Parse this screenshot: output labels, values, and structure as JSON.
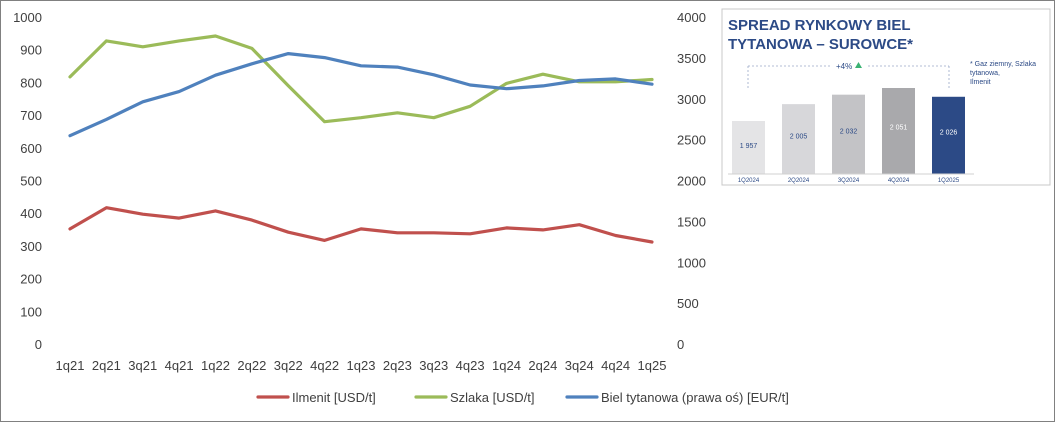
{
  "chart_data": [
    {
      "type": "line",
      "categories": [
        "1q21",
        "2q21",
        "3q21",
        "4q21",
        "1q22",
        "2q22",
        "3q22",
        "4q22",
        "1q23",
        "2q23",
        "3q23",
        "4q23",
        "1q24",
        "2q24",
        "3q24",
        "4q24",
        "1q25"
      ],
      "left_axis": {
        "ylim": [
          0,
          1000
        ],
        "ticks": [
          "0",
          "100",
          "200",
          "300",
          "400",
          "500",
          "600",
          "700",
          "800",
          "900",
          "1000"
        ]
      },
      "right_axis": {
        "ylim": [
          0,
          4000
        ],
        "ticks": [
          "0",
          "500",
          "1000",
          "1500",
          "2000",
          "2500",
          "3000",
          "3500",
          "4000"
        ]
      },
      "grid": false,
      "legend_position": "bottom",
      "series": [
        {
          "name": "Ilmenit [USD/t]",
          "axis": "left",
          "color": "#c0504d",
          "values": [
            355,
            420,
            400,
            388,
            410,
            382,
            345,
            320,
            355,
            343,
            343,
            340,
            358,
            352,
            368,
            335,
            315
          ]
        },
        {
          "name": "Szlaka [USD/t]",
          "axis": "left",
          "color": "#9bbb59",
          "values": [
            820,
            930,
            912,
            930,
            945,
            907,
            793,
            683,
            695,
            710,
            695,
            730,
            800,
            828,
            805,
            805,
            812
          ]
        },
        {
          "name": "Biel tytanowa (prawa oś) [EUR/t]",
          "axis": "right",
          "color": "#4f81bd",
          "values": [
            2560,
            2760,
            2975,
            3100,
            3300,
            3440,
            3565,
            3515,
            3415,
            3400,
            3305,
            3180,
            3135,
            3170,
            3235,
            3255,
            3190
          ]
        }
      ]
    },
    {
      "type": "bar",
      "title_line1": "SPREAD RYNKOWY BIEL",
      "title_line2": "TYTANOWA – SUROWCE*",
      "footnote": "* Gaz ziemny, Szlaka tytanowa, Ilmenit",
      "growth_label": "+4%",
      "categories": [
        "1Q2024",
        "2Q2024",
        "3Q2024",
        "4Q2024",
        "1Q2025"
      ],
      "values": [
        1957,
        2005,
        2032,
        2051,
        2026
      ],
      "value_labels": [
        "1 957",
        "2 005",
        "2 032",
        "2 051",
        "2 026"
      ],
      "bar_colors": [
        "#e4e4e6",
        "#d7d7da",
        "#c3c3c6",
        "#a9a9ac",
        "#2c4a86"
      ],
      "label_colors": [
        "#2c4a86",
        "#2c4a86",
        "#2c4a86",
        "#ffffff",
        "#ffffff"
      ],
      "growth_arrow_color": "#3bb273"
    }
  ]
}
